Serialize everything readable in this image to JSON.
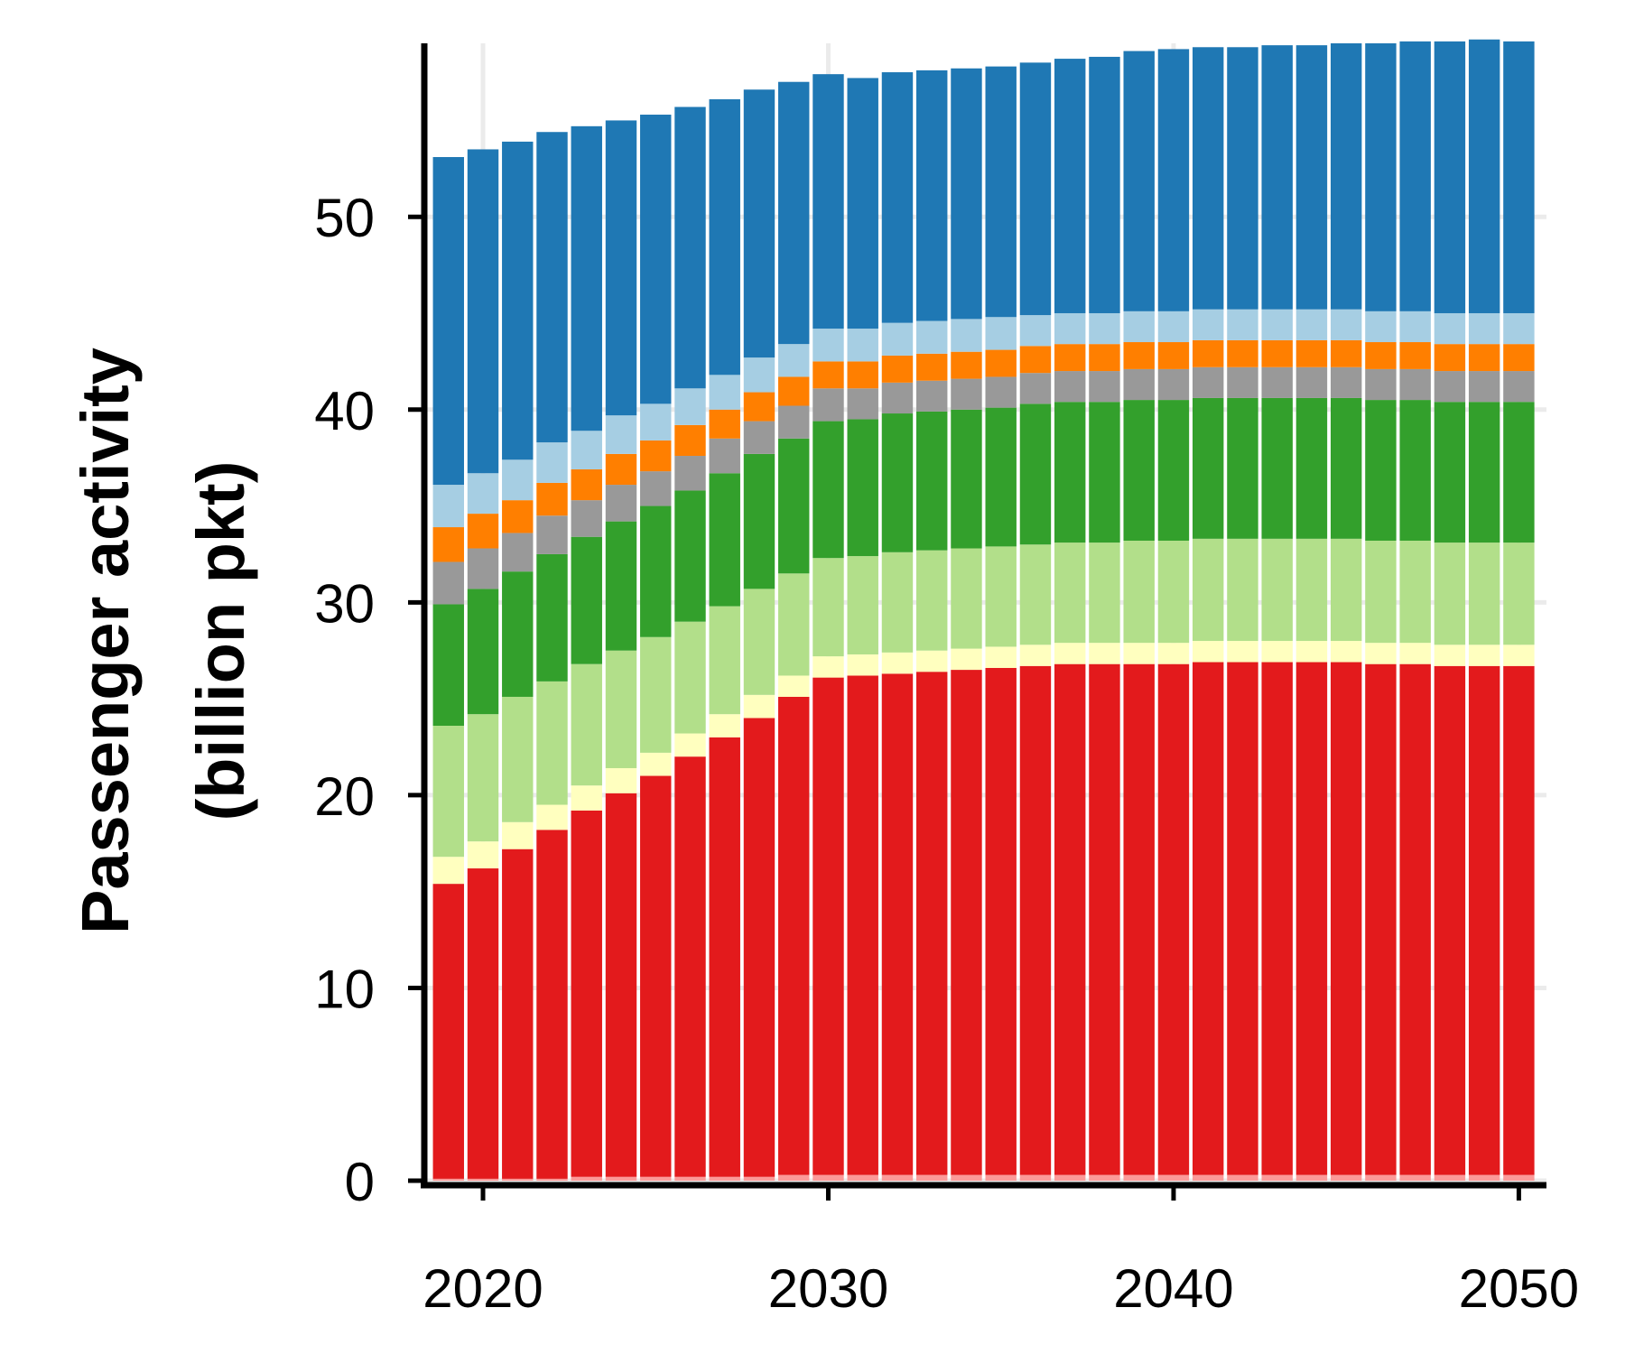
{
  "chart_data": {
    "type": "bar",
    "stacked": true,
    "xlabel": "",
    "ylabel_lines": [
      "Passenger activity",
      "(billion pkt)"
    ],
    "ylim": [
      0,
      59
    ],
    "xlim": [
      2018.3,
      2050.8
    ],
    "x_ticks": [
      2020,
      2030,
      2040,
      2050
    ],
    "y_ticks": [
      0,
      10,
      20,
      30,
      40,
      50
    ],
    "grid": true,
    "legend": "none",
    "categories": [
      2019,
      2020,
      2021,
      2022,
      2023,
      2024,
      2025,
      2026,
      2027,
      2028,
      2029,
      2030,
      2031,
      2032,
      2033,
      2034,
      2035,
      2036,
      2037,
      2038,
      2039,
      2040,
      2041,
      2042,
      2043,
      2044,
      2045,
      2046,
      2047,
      2048,
      2049,
      2050
    ],
    "series": [
      {
        "color": "#fb9a99",
        "values": [
          0.1,
          0.1,
          0.1,
          0.1,
          0.2,
          0.2,
          0.2,
          0.2,
          0.2,
          0.2,
          0.3,
          0.3,
          0.3,
          0.3,
          0.3,
          0.3,
          0.3,
          0.3,
          0.3,
          0.3,
          0.3,
          0.3,
          0.3,
          0.3,
          0.3,
          0.3,
          0.3,
          0.3,
          0.3,
          0.3,
          0.3,
          0.3
        ]
      },
      {
        "color": "#e31a1c",
        "values": [
          15.3,
          16.1,
          17.1,
          18.1,
          19.0,
          19.9,
          20.8,
          21.8,
          22.8,
          23.8,
          24.8,
          25.8,
          25.9,
          26.0,
          26.1,
          26.2,
          26.3,
          26.4,
          26.5,
          26.5,
          26.5,
          26.5,
          26.6,
          26.6,
          26.6,
          26.6,
          26.6,
          26.5,
          26.5,
          26.4,
          26.4,
          26.4
        ]
      },
      {
        "color": "#ffffbf",
        "values": [
          1.4,
          1.4,
          1.4,
          1.3,
          1.3,
          1.3,
          1.2,
          1.2,
          1.2,
          1.2,
          1.1,
          1.1,
          1.1,
          1.1,
          1.1,
          1.1,
          1.1,
          1.1,
          1.1,
          1.1,
          1.1,
          1.1,
          1.1,
          1.1,
          1.1,
          1.1,
          1.1,
          1.1,
          1.1,
          1.1,
          1.1,
          1.1
        ]
      },
      {
        "color": "#b2df8a",
        "values": [
          6.8,
          6.6,
          6.5,
          6.4,
          6.3,
          6.1,
          6.0,
          5.8,
          5.6,
          5.5,
          5.3,
          5.1,
          5.1,
          5.2,
          5.2,
          5.2,
          5.2,
          5.2,
          5.2,
          5.2,
          5.3,
          5.3,
          5.3,
          5.3,
          5.3,
          5.3,
          5.3,
          5.3,
          5.3,
          5.3,
          5.3,
          5.3
        ]
      },
      {
        "color": "#33a02c",
        "values": [
          6.3,
          6.5,
          6.5,
          6.6,
          6.6,
          6.7,
          6.8,
          6.8,
          6.9,
          7.0,
          7.0,
          7.1,
          7.1,
          7.2,
          7.2,
          7.2,
          7.2,
          7.3,
          7.3,
          7.3,
          7.3,
          7.3,
          7.3,
          7.3,
          7.3,
          7.3,
          7.3,
          7.3,
          7.3,
          7.3,
          7.3,
          7.3
        ]
      },
      {
        "color": "#999999",
        "values": [
          2.2,
          2.1,
          2.0,
          2.0,
          1.9,
          1.9,
          1.8,
          1.8,
          1.8,
          1.7,
          1.7,
          1.7,
          1.6,
          1.6,
          1.6,
          1.6,
          1.6,
          1.6,
          1.6,
          1.6,
          1.6,
          1.6,
          1.6,
          1.6,
          1.6,
          1.6,
          1.6,
          1.6,
          1.6,
          1.6,
          1.6,
          1.6
        ]
      },
      {
        "color": "#ff7f00",
        "values": [
          1.8,
          1.8,
          1.7,
          1.7,
          1.6,
          1.6,
          1.6,
          1.6,
          1.5,
          1.5,
          1.5,
          1.4,
          1.4,
          1.4,
          1.4,
          1.4,
          1.4,
          1.4,
          1.4,
          1.4,
          1.4,
          1.4,
          1.4,
          1.4,
          1.4,
          1.4,
          1.4,
          1.4,
          1.4,
          1.4,
          1.4,
          1.4
        ]
      },
      {
        "color": "#a6cee3",
        "values": [
          2.2,
          2.1,
          2.1,
          2.1,
          2.0,
          2.0,
          1.9,
          1.9,
          1.8,
          1.8,
          1.7,
          1.7,
          1.7,
          1.7,
          1.7,
          1.7,
          1.7,
          1.6,
          1.6,
          1.6,
          1.6,
          1.6,
          1.6,
          1.6,
          1.6,
          1.6,
          1.6,
          1.6,
          1.6,
          1.6,
          1.6,
          1.6
        ]
      },
      {
        "color": "#1f78b4",
        "values": [
          17.0,
          16.8,
          16.5,
          16.1,
          15.8,
          15.3,
          15.0,
          14.6,
          14.3,
          13.9,
          13.6,
          13.2,
          13.0,
          13.0,
          13.0,
          13.0,
          13.0,
          13.1,
          13.2,
          13.3,
          13.5,
          13.6,
          13.6,
          13.6,
          13.7,
          13.7,
          13.8,
          13.9,
          14.0,
          14.1,
          14.2,
          14.1
        ]
      }
    ]
  }
}
